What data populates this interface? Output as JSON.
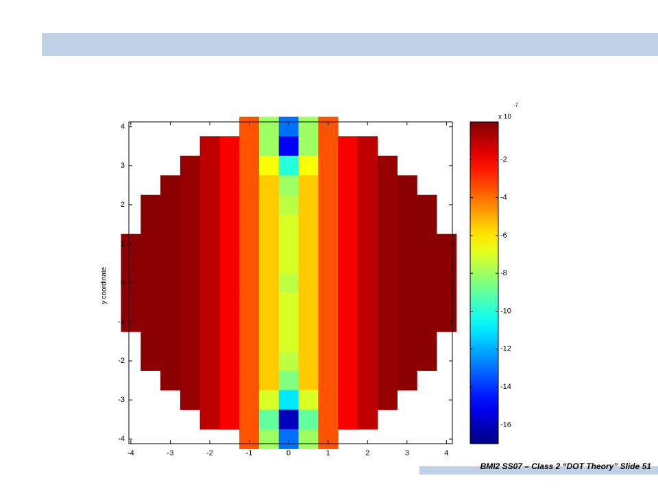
{
  "chart_data": {
    "type": "heatmap",
    "ylabel": "y coordinate",
    "colormap": "jet",
    "x": [
      -4,
      -3.5,
      -3,
      -2.5,
      -2,
      -1.5,
      -1,
      -0.5,
      0,
      0.5,
      1,
      1.5,
      2,
      2.5,
      3,
      3.5,
      4
    ],
    "y": [
      4,
      3.5,
      3,
      2.5,
      2,
      1.5,
      1,
      0.5,
      0,
      -0.5,
      -1,
      -1.5,
      -2,
      -2.5,
      -3,
      -3.5,
      -4
    ],
    "z": [
      [
        null,
        null,
        null,
        null,
        null,
        null,
        -3.5,
        -8,
        -13,
        -8,
        -3.5,
        null,
        null,
        null,
        null,
        null,
        null
      ],
      [
        null,
        null,
        null,
        null,
        -1,
        -2,
        -3.5,
        -8,
        -15,
        -8,
        -3.5,
        -2,
        -1,
        null,
        null,
        null,
        null
      ],
      [
        null,
        null,
        null,
        -0.4,
        -1,
        -2,
        -3.5,
        -6.5,
        -10,
        -6.5,
        -3.5,
        -2,
        -1,
        -0.4,
        null,
        null,
        null
      ],
      [
        null,
        null,
        -0.2,
        -0.4,
        -1,
        -2,
        -3.5,
        -5.5,
        -8,
        -5.5,
        -3.5,
        -2,
        -1,
        -0.4,
        -0.2,
        null,
        null
      ],
      [
        null,
        -0.2,
        -0.2,
        -0.4,
        -1,
        -2,
        -3.5,
        -5.5,
        -7.5,
        -5.5,
        -3.5,
        -2,
        -1,
        -0.4,
        -0.2,
        -0.2,
        null
      ],
      [
        null,
        -0.2,
        -0.2,
        -0.4,
        -1,
        -2,
        -3.5,
        -5.5,
        -7,
        -5.5,
        -3.5,
        -2,
        -1,
        -0.4,
        -0.2,
        -0.2,
        null
      ],
      [
        -0.2,
        -0.2,
        -0.2,
        -0.4,
        -1,
        -2,
        -3.5,
        -5.5,
        -7,
        -5.5,
        -3.5,
        -2,
        -1,
        -0.4,
        -0.2,
        -0.2,
        -0.2
      ],
      [
        -0.2,
        -0.2,
        -0.2,
        -0.4,
        -1,
        -2,
        -3.5,
        -5.5,
        -7,
        -5.5,
        -3.5,
        -2,
        -1,
        -0.4,
        -0.2,
        -0.2,
        -0.2
      ],
      [
        -0.2,
        -0.2,
        -0.2,
        -0.4,
        -1,
        -2,
        -3.5,
        -5.5,
        -7.5,
        -5.5,
        -3.5,
        -2,
        -1,
        -0.4,
        -0.2,
        -0.2,
        -0.2
      ],
      [
        -0.2,
        -0.2,
        -0.2,
        -0.4,
        -1,
        -2,
        -3.5,
        -5.5,
        -7,
        -5.5,
        -3.5,
        -2,
        -1,
        -0.4,
        -0.2,
        -0.2,
        -0.2
      ],
      [
        -0.2,
        -0.2,
        -0.2,
        -0.4,
        -1,
        -2,
        -3.5,
        -5.5,
        -7,
        -5.5,
        -3.5,
        -2,
        -1,
        -0.4,
        -0.2,
        -0.2,
        -0.2
      ],
      [
        null,
        -0.2,
        -0.2,
        -0.4,
        -1,
        -2,
        -3.5,
        -5.5,
        -7,
        -5.5,
        -3.5,
        -2,
        -1,
        -0.4,
        -0.2,
        -0.2,
        null
      ],
      [
        null,
        -0.2,
        -0.2,
        -0.4,
        -1,
        -2,
        -3.5,
        -5.5,
        -7.5,
        -5.5,
        -3.5,
        -2,
        -1,
        -0.4,
        -0.2,
        -0.2,
        null
      ],
      [
        null,
        null,
        -0.2,
        -0.4,
        -1,
        -2,
        -3.5,
        -5.5,
        -8.5,
        -5.5,
        -3.5,
        -2,
        -1,
        -0.4,
        -0.2,
        null,
        null
      ],
      [
        null,
        null,
        null,
        -0.4,
        -1,
        -2,
        -3.5,
        -7,
        -11,
        -7,
        -3.5,
        -2,
        -1,
        -0.4,
        null,
        null,
        null
      ],
      [
        null,
        null,
        null,
        null,
        -1,
        -2,
        -3.5,
        -9,
        -16,
        -9,
        -3.5,
        -2,
        -1,
        null,
        null,
        null,
        null
      ],
      [
        null,
        null,
        null,
        null,
        null,
        null,
        -3.5,
        -8,
        -13,
        -8,
        -3.5,
        null,
        null,
        null,
        null,
        null,
        null
      ]
    ],
    "xlim": [
      -4.05,
      4.15
    ],
    "ylim": [
      -4.12,
      4.12
    ],
    "xticks": [
      -4,
      -3,
      -2,
      -1,
      0,
      1,
      2,
      3,
      4
    ],
    "yticks": [
      -4,
      -3,
      -2,
      -1,
      0,
      1,
      2,
      3,
      4
    ],
    "colorbar": {
      "lim": [
        -17,
        0
      ],
      "ticks": [
        -2,
        -4,
        -6,
        -8,
        -10,
        -12,
        -14,
        -16
      ],
      "multiplier": "x 10",
      "exponent": "-7"
    }
  },
  "footer": "BMI2 SS07 – Class 2 “DOT Theory” Slide 51"
}
